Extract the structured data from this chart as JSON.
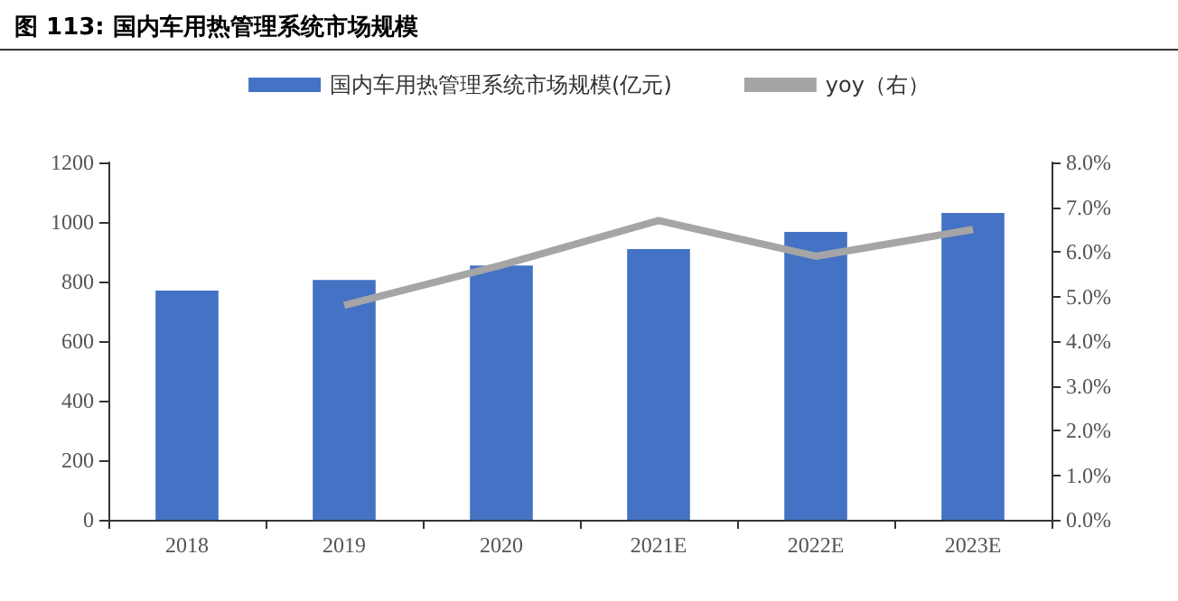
{
  "chart_data": {
    "type": "bar",
    "title": "图 113:  国内车用热管理系统市场规模",
    "categories": [
      "2018",
      "2019",
      "2020",
      "2021E",
      "2022E",
      "2023E"
    ],
    "series": [
      {
        "name": "国内车用热管理系统市场规模(亿元)",
        "color": "#4472c4",
        "values": [
          770,
          805,
          854,
          909,
          967,
          1030
        ]
      },
      {
        "name": "yoy（右）",
        "type": "line",
        "axis": "y2",
        "color": "#a5a5a5",
        "values": [
          null,
          4.8,
          5.7,
          6.7,
          5.9,
          6.5
        ]
      }
    ],
    "ylim": [
      0,
      1200
    ],
    "yticks": [
      0,
      200,
      400,
      600,
      800,
      1000,
      1200
    ],
    "y2lim": [
      0,
      8
    ],
    "y2ticks": [
      {
        "value": 0,
        "label": "0.0%"
      },
      {
        "value": 1,
        "label": "1.0%"
      },
      {
        "value": 2,
        "label": "2.0%"
      },
      {
        "value": 3,
        "label": "3.0%"
      },
      {
        "value": 4,
        "label": "4.0%"
      },
      {
        "value": 5,
        "label": "5.0%"
      },
      {
        "value": 6,
        "label": "6.0%"
      },
      {
        "value": 7,
        "label": "7.0%"
      },
      {
        "value": 8,
        "label": "8.0%"
      }
    ],
    "legend": "top",
    "grid": false,
    "marker": "none"
  }
}
